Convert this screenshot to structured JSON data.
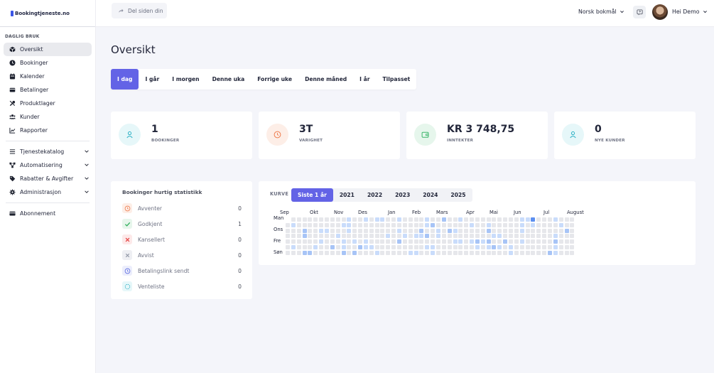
{
  "brand": {
    "name": "Bookingtjeneste.no"
  },
  "sidebar": {
    "section": "DAGLIG BRUK",
    "items": [
      {
        "label": "Oversikt",
        "icon": "dashboard-icon"
      },
      {
        "label": "Bookinger",
        "icon": "clock-icon"
      },
      {
        "label": "Kalender",
        "icon": "calendar-icon"
      },
      {
        "label": "Betalinger",
        "icon": "wallet-icon"
      },
      {
        "label": "Produktlager",
        "icon": "tools-icon"
      },
      {
        "label": "Kunder",
        "icon": "users-icon"
      },
      {
        "label": "Rapporter",
        "icon": "chart-icon"
      }
    ],
    "groups": [
      {
        "label": "Tjenestekatalog",
        "icon": "list-icon"
      },
      {
        "label": "Automatisering",
        "icon": "flow-icon"
      },
      {
        "label": "Rabatter & Avgifter",
        "icon": "tag-icon"
      },
      {
        "label": "Administrasjon",
        "icon": "gear-icon"
      }
    ],
    "subscription": {
      "label": "Abonnement",
      "icon": "card-icon"
    }
  },
  "topbar": {
    "share_label": "Del siden din",
    "language": "Norsk bokmål",
    "user_greeting": "Hei Demo"
  },
  "main": {
    "title": "Oversikt",
    "tabs": [
      "I dag",
      "I går",
      "I morgen",
      "Denne uka",
      "Forrige uke",
      "Denne måned",
      "I år",
      "Tilpasset"
    ],
    "active_tab": 0,
    "stats": [
      {
        "value": "1",
        "label": "BOOKINGER",
        "icon": "user-icon",
        "color": "#2bb0c4",
        "bg": "#e6f7f9"
      },
      {
        "value": "3T",
        "label": "VARIGHET",
        "icon": "clock-icon",
        "color": "#ee7d4f",
        "bg": "#fdeee7"
      },
      {
        "value": "KR 3 748,75",
        "label": "INNTEKTER",
        "icon": "wallet-icon",
        "color": "#3bb56a",
        "bg": "#e6f6ec"
      },
      {
        "value": "0",
        "label": "NYE KUNDER",
        "icon": "user-icon",
        "color": "#2bb0c4",
        "bg": "#e6f7f9"
      }
    ]
  },
  "quick_stats": {
    "title": "Bookinger hurtig statistikk",
    "rows": [
      {
        "label": "Avventer",
        "value": "0",
        "icon": "clock-icon",
        "color": "#ee7d4f",
        "bg": "#fdeee7"
      },
      {
        "label": "Godkjent",
        "value": "1",
        "icon": "check-icon",
        "color": "#2fae5b",
        "bg": "#e7f6ec"
      },
      {
        "label": "Kansellert",
        "value": "0",
        "icon": "x-icon",
        "color": "#e64545",
        "bg": "#fde9e9"
      },
      {
        "label": "Avvist",
        "value": "0",
        "icon": "x-icon",
        "color": "#8d93a3",
        "bg": "#eeeff3"
      },
      {
        "label": "Betalingslink sendt",
        "value": "0",
        "icon": "clock-icon",
        "color": "#5b6be0",
        "bg": "#eceefc"
      },
      {
        "label": "Venteliste",
        "value": "0",
        "icon": "spinner-icon",
        "color": "#2bb0c4",
        "bg": "#e6f7f9"
      }
    ]
  },
  "curve": {
    "label": "KURVE",
    "year_tabs": [
      "Siste 1 år",
      "2021",
      "2022",
      "2023",
      "2024",
      "2025"
    ],
    "active_year": 0,
    "months": [
      "Sep",
      "Okt",
      "Nov",
      "Des",
      "Jan",
      "Feb",
      "Mars",
      "Apr",
      "Mai",
      "Jun",
      "Jul",
      "August"
    ],
    "days": [
      "Man",
      "Ons",
      "Fre",
      "Søn"
    ],
    "colors": {
      "empty": "#e6e7eb",
      "light": "#c9dcfb",
      "medium": "#a7c4f6",
      "strong": "#5c8ff0"
    }
  },
  "colors": {
    "accent": "#6363e6"
  }
}
